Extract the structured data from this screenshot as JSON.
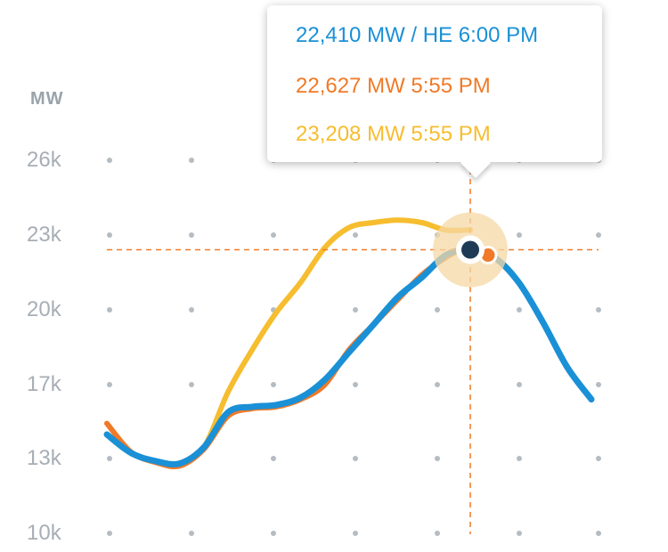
{
  "chart_data": {
    "type": "line",
    "ylabel": "MW",
    "yticks": [
      "26k",
      "23k",
      "20k",
      "17k",
      "13k",
      "10k"
    ],
    "ytick_values": [
      26000,
      23000,
      20000,
      17000,
      13000,
      10000
    ],
    "ylim": [
      10000,
      26000
    ],
    "grid": "dots",
    "series": [
      {
        "color": "#1a90d6",
        "x": [
          0,
          0.05,
          0.1,
          0.15,
          0.2,
          0.25,
          0.3,
          0.35,
          0.4,
          0.45,
          0.5,
          0.55,
          0.6,
          0.65,
          0.7,
          0.75,
          0.8,
          0.85,
          0.9,
          0.95,
          1.0
        ],
        "y": [
          14300,
          13300,
          12900,
          12800,
          13600,
          15500,
          15800,
          15900,
          16300,
          17200,
          18300,
          19400,
          20500,
          21300,
          22200,
          22410,
          22100,
          21100,
          19500,
          17700,
          16200
        ]
      },
      {
        "color": "#f07a28",
        "x": [
          0,
          0.05,
          0.1,
          0.15,
          0.2,
          0.25,
          0.3,
          0.35,
          0.4,
          0.45,
          0.5,
          0.55,
          0.6,
          0.65,
          0.7,
          0.75
        ],
        "y": [
          14900,
          13350,
          12850,
          12700,
          13500,
          15300,
          15700,
          15800,
          16200,
          17000,
          18400,
          19400,
          20400,
          21400,
          22100,
          22627
        ]
      },
      {
        "color": "#f6bd2f",
        "x": [
          0,
          0.05,
          0.1,
          0.15,
          0.2,
          0.25,
          0.3,
          0.35,
          0.4,
          0.45,
          0.5,
          0.55,
          0.6,
          0.65,
          0.7,
          0.75
        ],
        "y": [
          14300,
          13300,
          12900,
          12800,
          13600,
          16600,
          18400,
          19900,
          21100,
          22500,
          23300,
          23500,
          23600,
          23500,
          23200,
          23208
        ]
      }
    ]
  },
  "tooltip": {
    "line1": "22,410 MW / HE 6:00 PM",
    "line1_color": "#1a90d6",
    "line2": "22,627 MW 5:55 PM",
    "line2_color": "#f07a28",
    "line3": "23,208 MW 5:55 PM",
    "line3_color": "#f6bd2f"
  },
  "colors": {
    "crosshair": "#f07a28",
    "grid_dot": "#b5bcc2",
    "marker": "#1f3a55",
    "halo": "#f6d8a6"
  }
}
